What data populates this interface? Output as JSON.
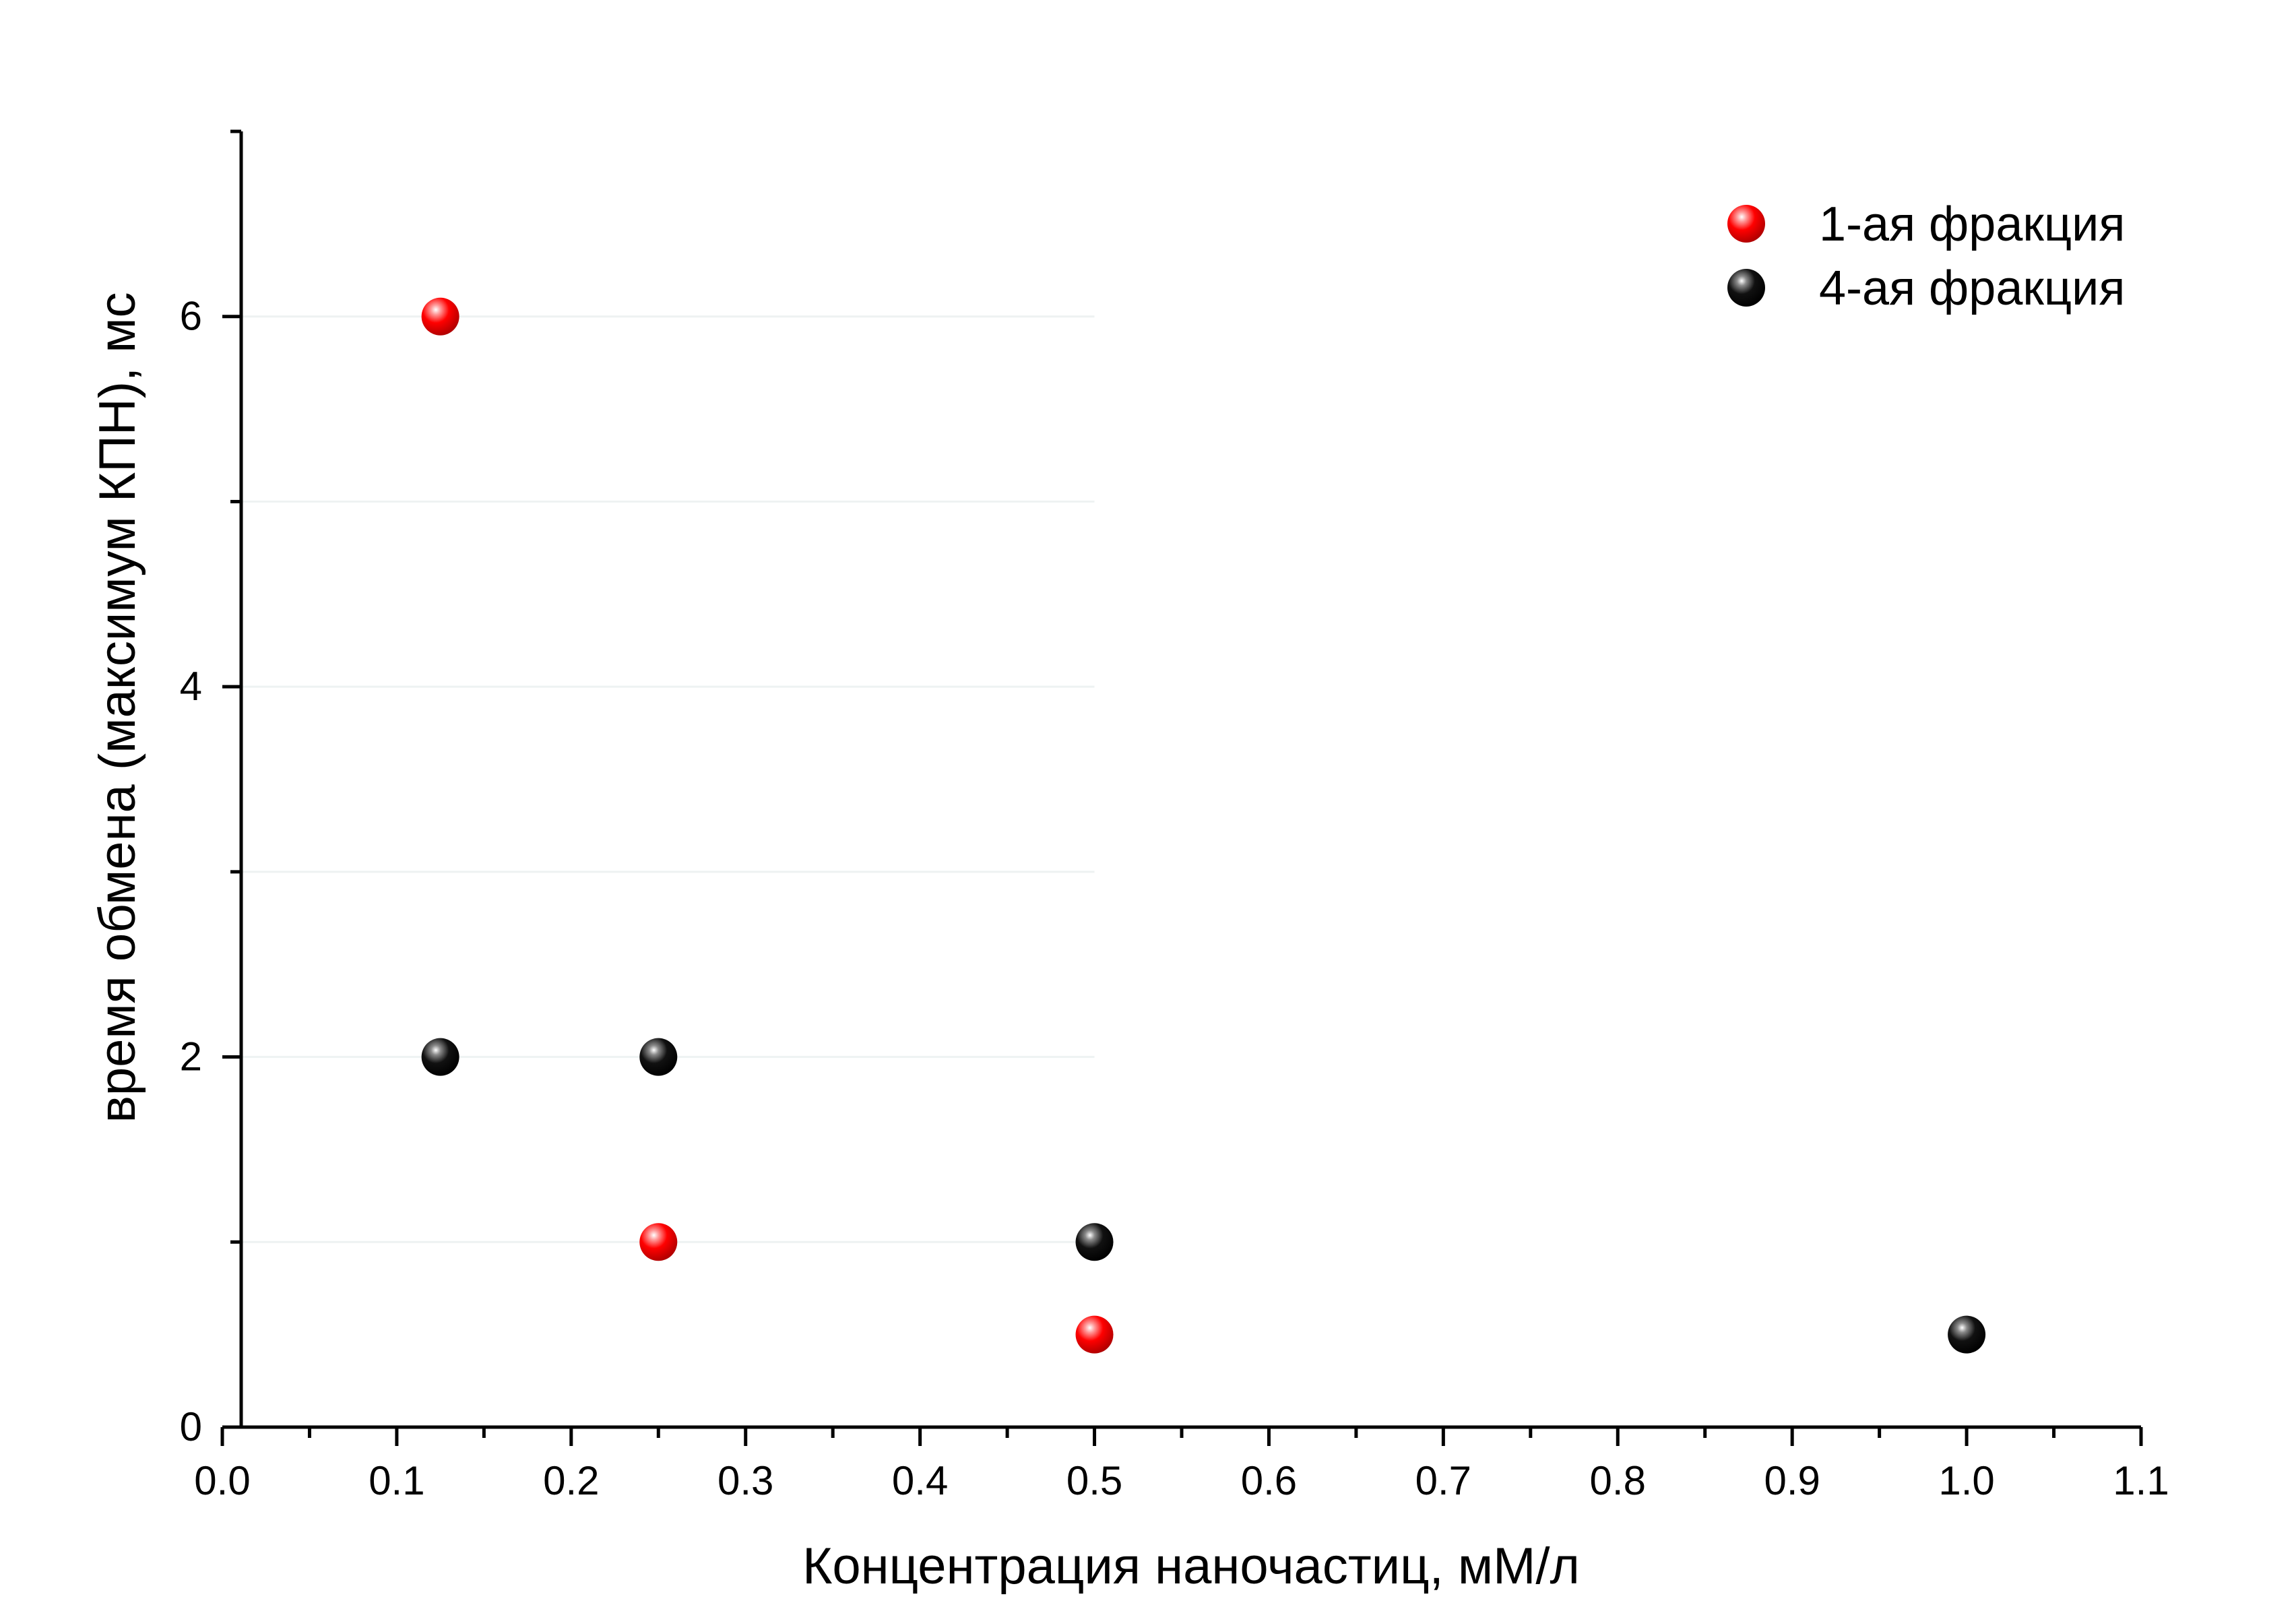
{
  "chart_data": {
    "type": "scatter",
    "xlabel": "Концентрация наночастиц, мМ/л",
    "ylabel": "время обмена (максимум КПН), мс",
    "xlim": [
      0,
      1.1
    ],
    "ylim": [
      0,
      7
    ],
    "x_ticks": [
      0.0,
      0.1,
      0.2,
      0.3,
      0.4,
      0.5,
      0.6,
      0.7,
      0.8,
      0.9,
      1.0,
      1.1
    ],
    "x_tick_labels": [
      "0.0",
      "0.1",
      "0.2",
      "0.3",
      "0.4",
      "0.5",
      "0.6",
      "0.7",
      "0.8",
      "0.9",
      "1.0",
      "1.1"
    ],
    "y_ticks": [
      0,
      2,
      4,
      6
    ],
    "y_tick_labels": [
      "0",
      "2",
      "4",
      "6"
    ],
    "y_minor_ticks": [
      1,
      3,
      5,
      7
    ],
    "x_minor_ticks": [
      0.05,
      0.15,
      0.25,
      0.35,
      0.45,
      0.55,
      0.65,
      0.75,
      0.85,
      0.95,
      1.05
    ],
    "grid": "faint horizontal",
    "legend_position": "top-right",
    "series": [
      {
        "name": "1-ая фракция",
        "color": "#ff0000",
        "x": [
          0.125,
          0.25,
          0.5
        ],
        "y": [
          6,
          1,
          0.5
        ]
      },
      {
        "name": "4-ая фракция",
        "color": "#000000",
        "x": [
          0.125,
          0.25,
          0.5,
          1.0
        ],
        "y": [
          2,
          2,
          1,
          0.5
        ]
      }
    ]
  }
}
